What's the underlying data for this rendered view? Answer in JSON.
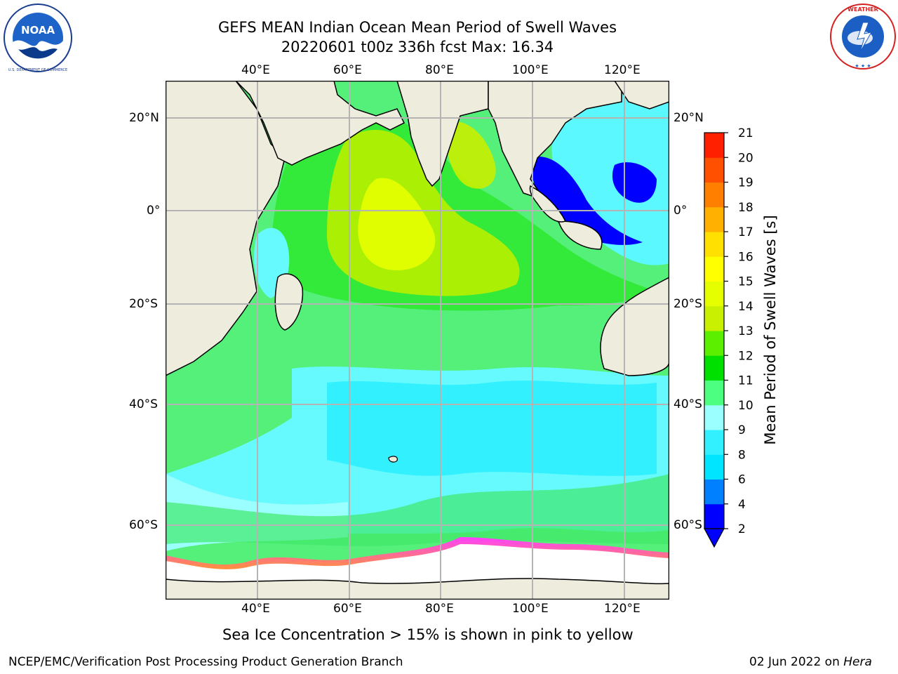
{
  "title": {
    "line1": "GEFS MEAN Indian Ocean Mean Period of Swell Waves",
    "line2": "20220601 t00z 336h fcst   Max: 16.34"
  },
  "axes": {
    "lon_ticks": [
      "40°E",
      "60°E",
      "80°E",
      "100°E",
      "120°E"
    ],
    "lat_ticks": [
      "20°N",
      "0°",
      "20°S",
      "40°S",
      "60°S"
    ],
    "lon_range": [
      20,
      130
    ],
    "lat_range": [
      -83,
      28
    ],
    "grid": true
  },
  "colorbar": {
    "title": "Mean Period of Swell Waves [s]",
    "levels": [
      "2",
      "4",
      "6",
      "8",
      "9",
      "10",
      "11",
      "12",
      "13",
      "14",
      "15",
      "16",
      "17",
      "18",
      "19",
      "20",
      "21"
    ],
    "colors": [
      "#0000ff",
      "#0080ff",
      "#00e5ff",
      "#33f0ff",
      "#9cffff",
      "#4cff80",
      "#00e000",
      "#5cf000",
      "#c8f000",
      "#e6ff00",
      "#ffff00",
      "#ffe000",
      "#ffb000",
      "#ff8000",
      "#ff5000",
      "#ff2000"
    ],
    "extend": "min"
  },
  "annotation": "Sea Ice Concentration > 15% is shown in pink to yellow",
  "footer": {
    "left": "NCEP/EMC/Verification Post Processing Product Generation Branch",
    "right_text": "02 Jun 2022 on ",
    "right_italic": "Hera"
  },
  "logos": {
    "noaa": "NOAA",
    "nws": "NATIONAL WEATHER SERVICE",
    "noaa_ring": "NATIONAL OCEANIC AND ATMOSPHERIC ADMINISTRATION"
  },
  "map_colors": {
    "land": "#eeecdc",
    "ice": "#ffffff",
    "grid": "#b4b4b4"
  }
}
